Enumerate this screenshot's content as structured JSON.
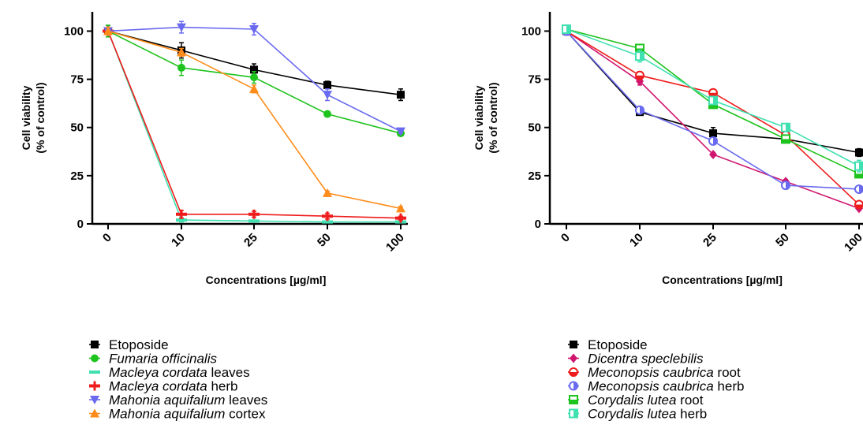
{
  "chart_data": [
    {
      "type": "line",
      "xlabel": "Concentrations [µg/ml]",
      "ylabel_line1": "Cell viability",
      "ylabel_line2": "(% of control)",
      "categories": [
        "0",
        "10",
        "25",
        "50",
        "100"
      ],
      "ylim": [
        0,
        110
      ],
      "yticks": [
        0,
        25,
        50,
        75,
        100
      ],
      "grid": false,
      "legend_position": "below",
      "series": [
        {
          "name_italic": "",
          "name_plain": "Etoposide",
          "color": "#000000",
          "marker": "square",
          "values": [
            100,
            90,
            80,
            72,
            67
          ],
          "errors": [
            3,
            4,
            3,
            2,
            3
          ]
        },
        {
          "name_italic": "Fumaria officinalis",
          "name_plain": "",
          "color": "#1ec31e",
          "marker": "circle",
          "values": [
            100,
            81,
            76,
            57,
            47
          ],
          "errors": [
            3,
            4,
            3,
            1,
            1
          ]
        },
        {
          "name_italic": "Macleya cordata",
          "name_plain": " leaves",
          "color": "#40e0b0",
          "marker": "dash",
          "values": [
            100,
            2,
            1.5,
            1,
            1
          ],
          "errors": [
            2,
            1,
            0.5,
            0.5,
            0.5
          ]
        },
        {
          "name_italic": "Macleya cordata",
          "name_plain": " herb",
          "color": "#ee1c1c",
          "marker": "cross",
          "values": [
            100,
            5,
            5,
            4,
            3
          ],
          "errors": [
            2,
            2,
            1.5,
            1.5,
            1
          ]
        },
        {
          "name_italic": "Mahonia aquifalium",
          "name_plain": " leaves",
          "color": "#6a6af0",
          "marker": "tri-down",
          "values": [
            100,
            102,
            101,
            67,
            48
          ],
          "errors": [
            2,
            3,
            3,
            3,
            1
          ]
        },
        {
          "name_italic": "Mahonia aquifalium",
          "name_plain": " cortex",
          "color": "#ff8c1a",
          "marker": "tri-up",
          "values": [
            100,
            89,
            70,
            16,
            8
          ],
          "errors": [
            2,
            2,
            2,
            1,
            1
          ]
        }
      ]
    },
    {
      "type": "line",
      "xlabel": "Concentrations [µg/ml]",
      "ylabel_line1": "Cell viability",
      "ylabel_line2": "(% of control)",
      "categories": [
        "0",
        "10",
        "25",
        "50",
        "100"
      ],
      "ylim": [
        0,
        110
      ],
      "yticks": [
        0,
        25,
        50,
        75,
        100
      ],
      "grid": false,
      "legend_position": "below",
      "series": [
        {
          "name_italic": "",
          "name_plain": "Etoposide",
          "color": "#000000",
          "marker": "square",
          "values": [
            100,
            58,
            47,
            44,
            37
          ],
          "errors": [
            2,
            1,
            3,
            1,
            2
          ]
        },
        {
          "name_italic": "Dicentra speclebilis",
          "name_plain": "",
          "color": "#d0156e",
          "marker": "diamond",
          "values": [
            100,
            74,
            36,
            22,
            8
          ],
          "errors": [
            2,
            2,
            1,
            1,
            1
          ]
        },
        {
          "name_italic": "Meconopsis caubrica",
          "name_plain": " root",
          "color": "#ee1c1c",
          "marker": "half-circle",
          "values": [
            100,
            77,
            68,
            46,
            10
          ],
          "errors": [
            2,
            2,
            1,
            1,
            1
          ]
        },
        {
          "name_italic": "Meconopsis caubrica",
          "name_plain": " herb",
          "color": "#6a6af0",
          "marker": "half-circle-v",
          "values": [
            100,
            59,
            43,
            20,
            18
          ],
          "errors": [
            2,
            1,
            1,
            1,
            1
          ]
        },
        {
          "name_italic": "Corydalis lutea",
          "name_plain": " root",
          "color": "#1ec31e",
          "marker": "half-square",
          "values": [
            101,
            91,
            62,
            44,
            26
          ],
          "errors": [
            2,
            2,
            2,
            1,
            1
          ]
        },
        {
          "name_italic": "Corydalis lutea",
          "name_plain": " herb",
          "color": "#40e0b0",
          "marker": "half-square-v",
          "values": [
            101,
            87,
            64,
            50,
            30
          ],
          "errors": [
            2,
            3,
            2,
            2,
            3
          ]
        }
      ]
    }
  ]
}
